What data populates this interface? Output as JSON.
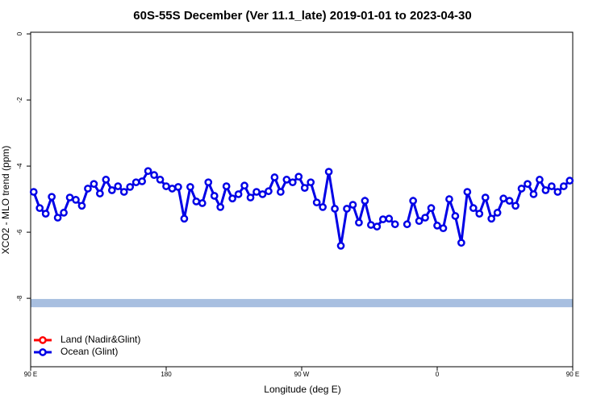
{
  "chart_data": {
    "type": "line",
    "title": "60S-55S December (Ver 11.1_late)   2019-01-01 to 2023-04-30",
    "xlabel": "Longitude (deg E)",
    "ylabel": "XCO2 - MLO trend (ppm)",
    "xlim": [
      90,
      450
    ],
    "ylim": [
      -10.07,
      0.05
    ],
    "xticks": [
      {
        "value": 90,
        "label": "90 E"
      },
      180,
      {
        "value": 270,
        "label": "90 W"
      },
      {
        "value": 360,
        "label": "0"
      },
      {
        "value": 450,
        "label": "90 E"
      }
    ],
    "yticks": [
      0,
      -2,
      -4,
      -6,
      -8
    ],
    "band": {
      "y": [
        -8.27,
        -8.02
      ],
      "color": "#a8bfe0"
    },
    "legend": "bottom-left",
    "x": [
      92,
      96,
      100,
      104,
      108,
      112,
      116,
      120,
      124,
      128,
      132,
      136,
      140,
      144,
      148,
      152,
      156,
      160,
      164,
      168,
      172,
      176,
      180,
      184,
      188,
      192,
      196,
      200,
      204,
      208,
      212,
      216,
      220,
      224,
      228,
      232,
      236,
      240,
      244,
      248,
      252,
      256,
      260,
      264,
      268,
      272,
      276,
      280,
      284,
      288,
      292,
      296,
      300,
      304,
      308,
      312,
      316,
      320,
      324,
      328,
      332,
      336,
      340,
      344,
      348,
      352,
      356,
      360,
      364,
      368,
      372,
      376,
      380,
      384,
      388,
      392,
      396,
      400,
      404,
      408,
      412,
      416,
      420,
      424,
      428,
      432,
      436,
      440,
      444,
      448
    ],
    "series": [
      {
        "name": "Land (Nadir&Glint)",
        "color": "#ff0000",
        "values": [
          null,
          null,
          null,
          null,
          null,
          null,
          null,
          null,
          null,
          null,
          null,
          null,
          null,
          null,
          null,
          null,
          null,
          null,
          null,
          null,
          null,
          null,
          null,
          null,
          null,
          null,
          null,
          null,
          null,
          null,
          null,
          null,
          null,
          null,
          null,
          null,
          null,
          null,
          null,
          null,
          null,
          null,
          null,
          null,
          null,
          null,
          null,
          null,
          null,
          null,
          null,
          null,
          null,
          null,
          null,
          null,
          null,
          null,
          null,
          null,
          null,
          null,
          null,
          null,
          null,
          null,
          null,
          null,
          null,
          null,
          null,
          null,
          null,
          null,
          null,
          null,
          null,
          null,
          null,
          null,
          null,
          null,
          null,
          null,
          null,
          null,
          null,
          null,
          null,
          null
        ]
      },
      {
        "name": "Ocean (Glint)",
        "color": "#0000e6",
        "values": [
          -4.78,
          -5.27,
          -5.44,
          -4.93,
          -5.56,
          -5.41,
          -4.95,
          -5.02,
          -5.2,
          -4.68,
          -4.54,
          -4.83,
          -4.41,
          -4.73,
          -4.61,
          -4.78,
          -4.63,
          -4.49,
          -4.46,
          -4.15,
          -4.27,
          -4.41,
          -4.61,
          -4.68,
          -4.63,
          -5.59,
          -4.63,
          -5.07,
          -5.12,
          -4.49,
          -4.9,
          -5.24,
          -4.61,
          -4.98,
          -4.85,
          -4.59,
          -4.95,
          -4.78,
          -4.85,
          -4.76,
          -4.34,
          -4.78,
          -4.41,
          -4.49,
          -4.32,
          -4.66,
          -4.49,
          -5.1,
          -5.24,
          -4.17,
          -5.29,
          -6.41,
          -5.29,
          -5.17,
          -5.71,
          -5.05,
          -5.78,
          -5.83,
          -5.61,
          -5.59,
          -5.76,
          null,
          -5.76,
          -5.05,
          -5.66,
          -5.56,
          -5.27,
          -5.8,
          -5.88,
          -5,
          -5.51,
          -6.32,
          -4.78,
          -5.27,
          -5.44,
          -4.95,
          -5.59,
          -5.41,
          -4.98,
          -5.05,
          -5.2,
          -4.68,
          -4.54,
          -4.85,
          -4.41,
          -4.73,
          -4.61,
          -4.78,
          -4.61,
          -4.44
        ]
      }
    ]
  }
}
